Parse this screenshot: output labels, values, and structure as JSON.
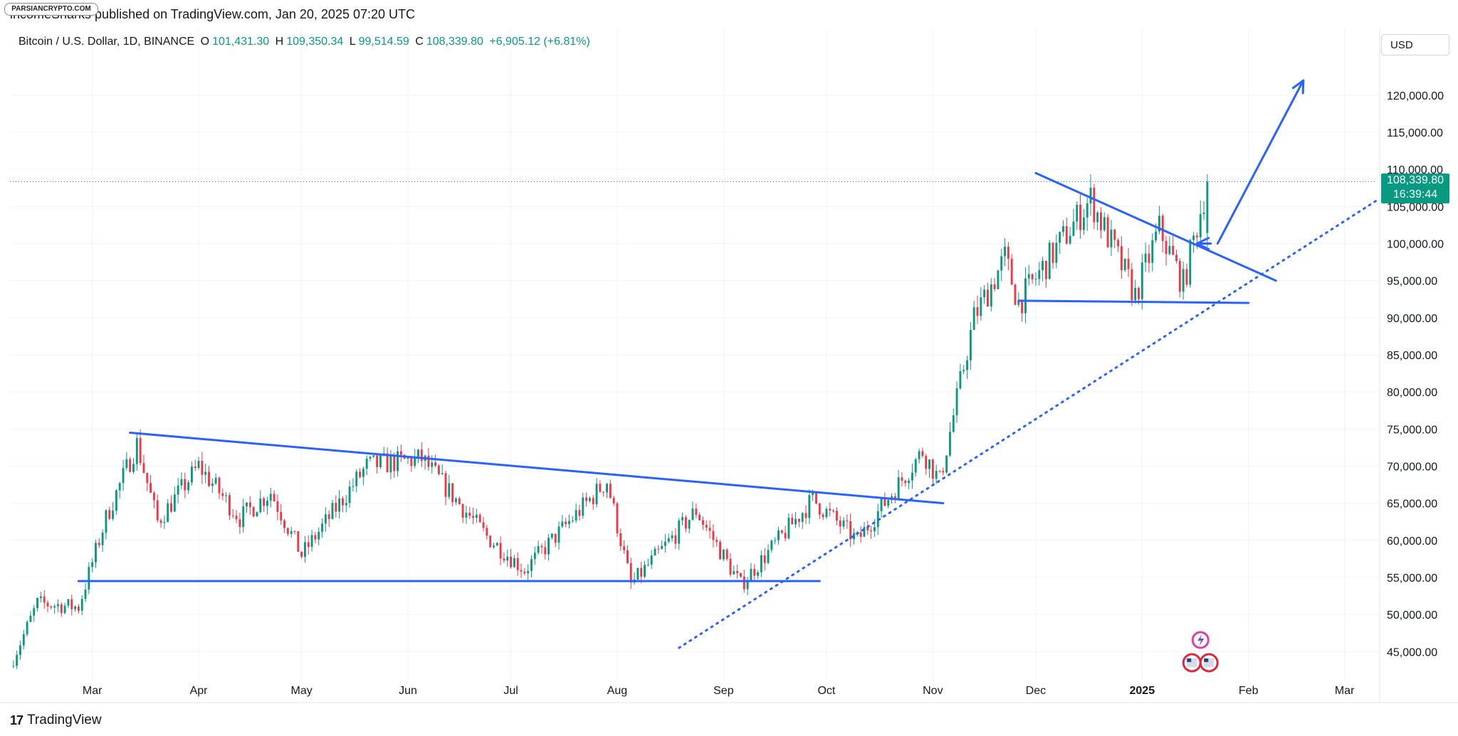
{
  "header": {
    "logo_text": "PARSIANCRYPTO.COM",
    "published": "incomeSharks published on TradingView.com, Jan 20, 2025 07:20 UTC"
  },
  "legend": {
    "symbol": "Bitcoin / U.S. Dollar, 1D, BINANCE",
    "o_label": "O",
    "o_value": "101,431.30",
    "h_label": "H",
    "h_value": "109,350.34",
    "l_label": "L",
    "l_value": "99,514.59",
    "c_label": "C",
    "c_value": "108,339.80",
    "change": "+6,905.12 (+6.81%)"
  },
  "currency_button": "USD",
  "last_price": {
    "price": "108,339.80",
    "countdown": "16:39:44"
  },
  "footer": {
    "brand": "TradingView",
    "brand_icon": "tradingview-logo-icon"
  },
  "chart_data": {
    "type": "candlestick",
    "title": "Bitcoin / U.S. Dollar, 1D, BINANCE",
    "xlabel": "",
    "ylabel": "USD",
    "ylim": [
      41000,
      129000
    ],
    "y_ticks": [
      45000,
      50000,
      55000,
      60000,
      65000,
      70000,
      75000,
      80000,
      85000,
      90000,
      95000,
      100000,
      105000,
      110000,
      115000,
      120000
    ],
    "y_tick_labels": [
      "45,000.00",
      "50,000.00",
      "55,000.00",
      "60,000.00",
      "65,000.00",
      "70,000.00",
      "75,000.00",
      "80,000.00",
      "85,000.00",
      "90,000.00",
      "95,000.00",
      "100,000.00",
      "105,000.00",
      "110,000.00",
      "115,000.00",
      "120,000.00"
    ],
    "x_range": {
      "start": "2024-02-06",
      "end": "2025-03-10"
    },
    "x_ticks": [
      {
        "label": "Mar",
        "date": "2024-03-01",
        "bold": false
      },
      {
        "label": "Apr",
        "date": "2024-04-01",
        "bold": false
      },
      {
        "label": "May",
        "date": "2024-05-01",
        "bold": false
      },
      {
        "label": "Jun",
        "date": "2024-06-01",
        "bold": false
      },
      {
        "label": "Jul",
        "date": "2024-07-01",
        "bold": false
      },
      {
        "label": "Aug",
        "date": "2024-08-01",
        "bold": false
      },
      {
        "label": "Sep",
        "date": "2024-09-01",
        "bold": false
      },
      {
        "label": "Oct",
        "date": "2024-10-01",
        "bold": false
      },
      {
        "label": "Nov",
        "date": "2024-11-01",
        "bold": false
      },
      {
        "label": "Dec",
        "date": "2024-12-01",
        "bold": false
      },
      {
        "label": "2025",
        "date": "2025-01-01",
        "bold": true
      },
      {
        "label": "Feb",
        "date": "2025-02-01",
        "bold": false
      },
      {
        "label": "Mar",
        "date": "2025-03-01",
        "bold": false
      }
    ],
    "colors": {
      "up": "#089981",
      "down": "#f23645",
      "drawing": "#2962ff",
      "grid": "#f0f3fa",
      "last_price": "#089981"
    },
    "last_price_value": 108339.8,
    "price_path": [
      {
        "date": "2024-02-06",
        "close": 43000
      },
      {
        "date": "2024-02-14",
        "close": 51500
      },
      {
        "date": "2024-02-26",
        "close": 51000
      },
      {
        "date": "2024-03-05",
        "close": 63000
      },
      {
        "date": "2024-03-14",
        "close": 73000
      },
      {
        "date": "2024-03-20",
        "close": 62500
      },
      {
        "date": "2024-04-01",
        "close": 70000
      },
      {
        "date": "2024-04-13",
        "close": 63000
      },
      {
        "date": "2024-04-22",
        "close": 66500
      },
      {
        "date": "2024-05-01",
        "close": 58000
      },
      {
        "date": "2024-05-20",
        "close": 70000
      },
      {
        "date": "2024-06-05",
        "close": 71000
      },
      {
        "date": "2024-06-24",
        "close": 60500
      },
      {
        "date": "2024-07-05",
        "close": 56000
      },
      {
        "date": "2024-07-29",
        "close": 68000
      },
      {
        "date": "2024-08-05",
        "close": 54000
      },
      {
        "date": "2024-08-24",
        "close": 64000
      },
      {
        "date": "2024-09-06",
        "close": 54000
      },
      {
        "date": "2024-09-27",
        "close": 65500
      },
      {
        "date": "2024-10-10",
        "close": 60000
      },
      {
        "date": "2024-10-29",
        "close": 72000
      },
      {
        "date": "2024-11-03",
        "close": 68000
      },
      {
        "date": "2024-11-13",
        "close": 90000
      },
      {
        "date": "2024-11-22",
        "close": 98000
      },
      {
        "date": "2024-11-26",
        "close": 92000
      },
      {
        "date": "2024-12-17",
        "close": 106000
      },
      {
        "date": "2024-12-30",
        "close": 93000
      },
      {
        "date": "2025-01-06",
        "close": 102000
      },
      {
        "date": "2025-01-13",
        "close": 94500
      },
      {
        "date": "2025-01-20",
        "close": 108339.8
      }
    ],
    "annotations": [
      {
        "type": "trendline",
        "style": "solid",
        "from": {
          "date": "2024-03-12",
          "value": 74500
        },
        "to": {
          "date": "2024-11-04",
          "value": 65000
        }
      },
      {
        "type": "trendline",
        "style": "solid",
        "from": {
          "date": "2024-02-26",
          "value": 54500
        },
        "to": {
          "date": "2024-09-29",
          "value": 54500
        }
      },
      {
        "type": "trendline",
        "style": "dotted",
        "from": {
          "date": "2024-08-19",
          "value": 45500
        },
        "to": {
          "date": "2025-03-11",
          "value": 106000
        }
      },
      {
        "type": "trendline",
        "style": "solid",
        "from": {
          "date": "2024-11-26",
          "value": 92300
        },
        "to": {
          "date": "2025-02-01",
          "value": 92000
        }
      },
      {
        "type": "trendline",
        "style": "solid",
        "from": {
          "date": "2024-12-01",
          "value": 109500
        },
        "to": {
          "date": "2025-02-09",
          "value": 95000
        }
      },
      {
        "type": "arrow",
        "style": "solid",
        "from": {
          "date": "2025-01-23",
          "value": 100000
        },
        "to": {
          "date": "2025-02-17",
          "value": 122000
        }
      },
      {
        "type": "arrow",
        "style": "solid",
        "from": {
          "date": "2025-01-21",
          "value": 100000
        },
        "to": {
          "date": "2025-01-17",
          "value": 100000
        }
      }
    ]
  }
}
